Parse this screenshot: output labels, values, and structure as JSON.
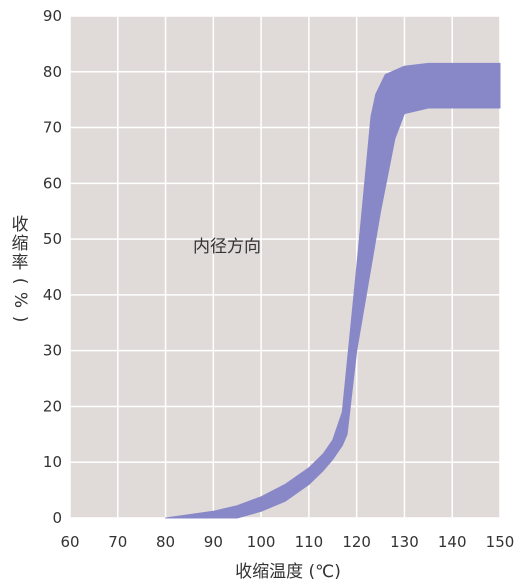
{
  "chart_data": {
    "type": "area",
    "xlabel": "收缩温度 (℃)",
    "ylabel_chars": [
      "收",
      "缩",
      "率",
      "(",
      "%",
      ")"
    ],
    "xlim": [
      60,
      150
    ],
    "ylim": [
      0,
      90
    ],
    "x_ticks": [
      60,
      70,
      80,
      90,
      100,
      110,
      120,
      130,
      140,
      150
    ],
    "y_ticks": [
      0,
      10,
      20,
      30,
      40,
      50,
      60,
      70,
      80,
      90
    ],
    "grid": true,
    "annotation": "内径方向",
    "series": [
      {
        "upper": [
          [
            80,
            0
          ],
          [
            90,
            1.2
          ],
          [
            95,
            2.2
          ],
          [
            100,
            3.8
          ],
          [
            105,
            6
          ],
          [
            110,
            9
          ],
          [
            113,
            11.5
          ],
          [
            115,
            14
          ],
          [
            117,
            19
          ],
          [
            120,
            45
          ],
          [
            123,
            72
          ],
          [
            124,
            76
          ],
          [
            126,
            79.5
          ],
          [
            130,
            81
          ],
          [
            135,
            81.5
          ],
          [
            150,
            81.5
          ]
        ],
        "lower": [
          [
            80,
            0
          ],
          [
            95,
            0
          ],
          [
            100,
            1.2
          ],
          [
            105,
            3
          ],
          [
            110,
            6
          ],
          [
            113,
            8.5
          ],
          [
            115,
            10.5
          ],
          [
            117,
            13
          ],
          [
            118,
            15
          ],
          [
            120,
            30
          ],
          [
            125,
            55
          ],
          [
            128,
            68
          ],
          [
            130,
            72.5
          ],
          [
            135,
            73.5
          ],
          [
            150,
            73.5
          ]
        ],
        "color": "#8888c8"
      }
    ],
    "plot_background": "#e0dbd8",
    "grid_color": "#ffffff"
  }
}
